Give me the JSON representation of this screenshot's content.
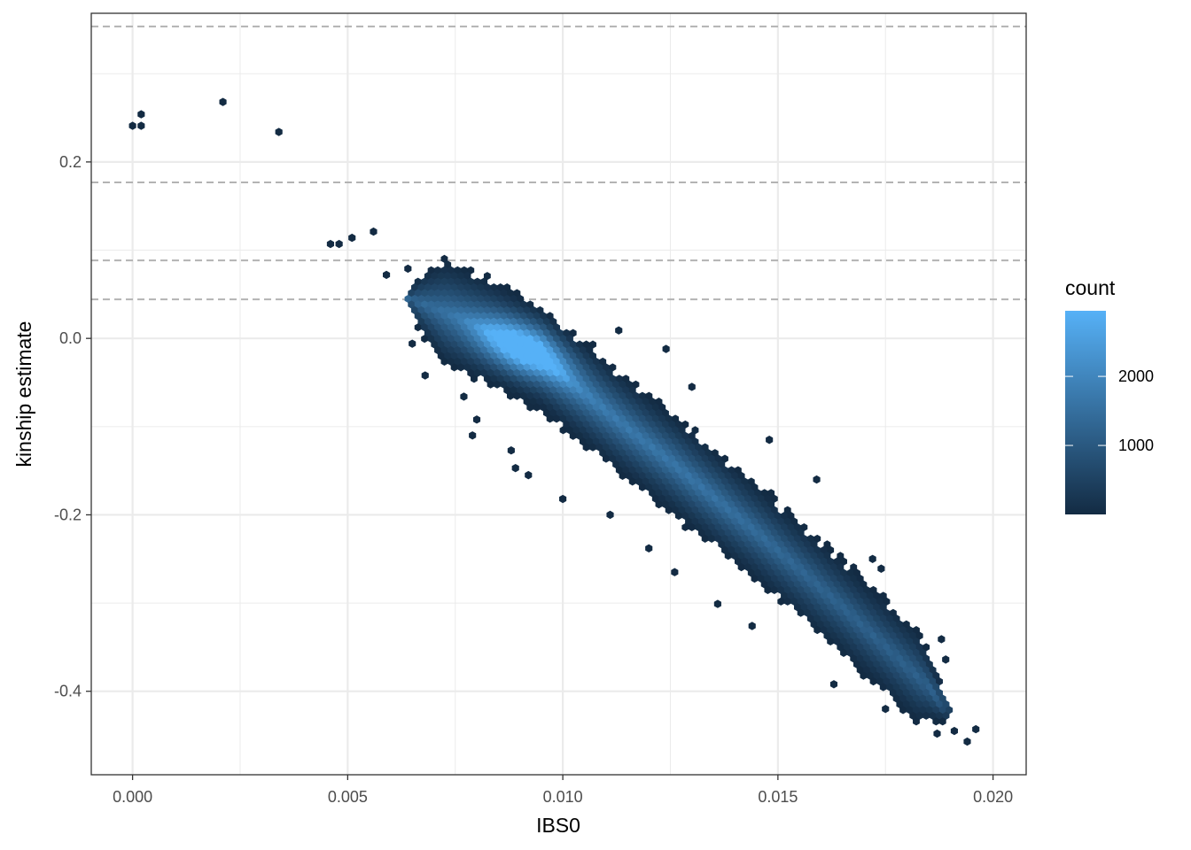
{
  "chart_data": {
    "type": "hexbin",
    "xlabel": "IBS0",
    "ylabel": "kinship estimate",
    "xlim": [
      -0.00096,
      0.02077
    ],
    "ylim": [
      -0.4946,
      0.3685
    ],
    "x_ticks": [
      0.0,
      0.005,
      0.01,
      0.015,
      0.02
    ],
    "x_tick_labels": [
      "0.000",
      "0.005",
      "0.010",
      "0.015",
      "0.020"
    ],
    "y_ticks": [
      -0.4,
      -0.2,
      0.0,
      0.2
    ],
    "y_tick_labels": [
      "-0.4",
      "-0.2",
      "0.0",
      "0.2"
    ],
    "grid": true,
    "reference_lines_y": [
      0.3536,
      0.1768,
      0.0884,
      0.0442
    ],
    "legend": {
      "title": "count",
      "position": "right",
      "breaks": [
        1000,
        2000
      ],
      "break_labels": [
        "1000",
        "2000"
      ],
      "range": [
        1,
        2950
      ],
      "low_color": "#132b43",
      "high_color": "#56b1f7"
    },
    "outlier_points": [
      {
        "x": 0.0,
        "y": 0.241
      },
      {
        "x": 0.0002,
        "y": 0.241
      },
      {
        "x": 0.0002,
        "y": 0.254
      },
      {
        "x": 0.0021,
        "y": 0.268
      },
      {
        "x": 0.0034,
        "y": 0.234
      },
      {
        "x": 0.0046,
        "y": 0.107
      },
      {
        "x": 0.0048,
        "y": 0.107
      },
      {
        "x": 0.0051,
        "y": 0.114
      },
      {
        "x": 0.0056,
        "y": 0.121
      },
      {
        "x": 0.0059,
        "y": 0.072
      },
      {
        "x": 0.0064,
        "y": 0.079
      },
      {
        "x": 0.0065,
        "y": -0.006
      },
      {
        "x": 0.0068,
        "y": -0.042
      },
      {
        "x": 0.0077,
        "y": -0.066
      },
      {
        "x": 0.008,
        "y": -0.092
      },
      {
        "x": 0.0079,
        "y": -0.11
      },
      {
        "x": 0.0088,
        "y": -0.127
      },
      {
        "x": 0.0089,
        "y": -0.147
      },
      {
        "x": 0.0092,
        "y": -0.155
      },
      {
        "x": 0.01,
        "y": -0.182
      },
      {
        "x": 0.0111,
        "y": -0.2
      },
      {
        "x": 0.012,
        "y": -0.238
      },
      {
        "x": 0.0126,
        "y": -0.265
      },
      {
        "x": 0.0136,
        "y": -0.301
      },
      {
        "x": 0.0144,
        "y": -0.326
      },
      {
        "x": 0.0163,
        "y": -0.392
      },
      {
        "x": 0.0175,
        "y": -0.42
      },
      {
        "x": 0.0187,
        "y": -0.448
      },
      {
        "x": 0.0191,
        "y": -0.445
      },
      {
        "x": 0.0194,
        "y": -0.457
      },
      {
        "x": 0.0196,
        "y": -0.443
      },
      {
        "x": 0.0189,
        "y": -0.364
      },
      {
        "x": 0.0188,
        "y": -0.341
      },
      {
        "x": 0.0174,
        "y": -0.261
      },
      {
        "x": 0.0172,
        "y": -0.25
      },
      {
        "x": 0.0159,
        "y": -0.16
      },
      {
        "x": 0.0148,
        "y": -0.115
      },
      {
        "x": 0.013,
        "y": -0.055
      },
      {
        "x": 0.0124,
        "y": -0.012
      },
      {
        "x": 0.0113,
        "y": 0.009
      }
    ],
    "density_band": {
      "description_free": true,
      "ridge": [
        {
          "x": 0.0064,
          "y": 0.045
        },
        {
          "x": 0.0075,
          "y": 0.025
        },
        {
          "x": 0.0085,
          "y": 0.003
        },
        {
          "x": 0.0095,
          "y": -0.022
        },
        {
          "x": 0.0105,
          "y": -0.062
        },
        {
          "x": 0.0115,
          "y": -0.102
        },
        {
          "x": 0.0125,
          "y": -0.14
        },
        {
          "x": 0.0135,
          "y": -0.18
        },
        {
          "x": 0.0145,
          "y": -0.22
        },
        {
          "x": 0.0155,
          "y": -0.262
        },
        {
          "x": 0.0165,
          "y": -0.305
        },
        {
          "x": 0.0175,
          "y": -0.35
        },
        {
          "x": 0.0185,
          "y": -0.395
        },
        {
          "x": 0.019,
          "y": -0.425
        }
      ],
      "hot_spot": {
        "x": 0.0091,
        "y": -0.012,
        "count": 2950
      }
    }
  }
}
